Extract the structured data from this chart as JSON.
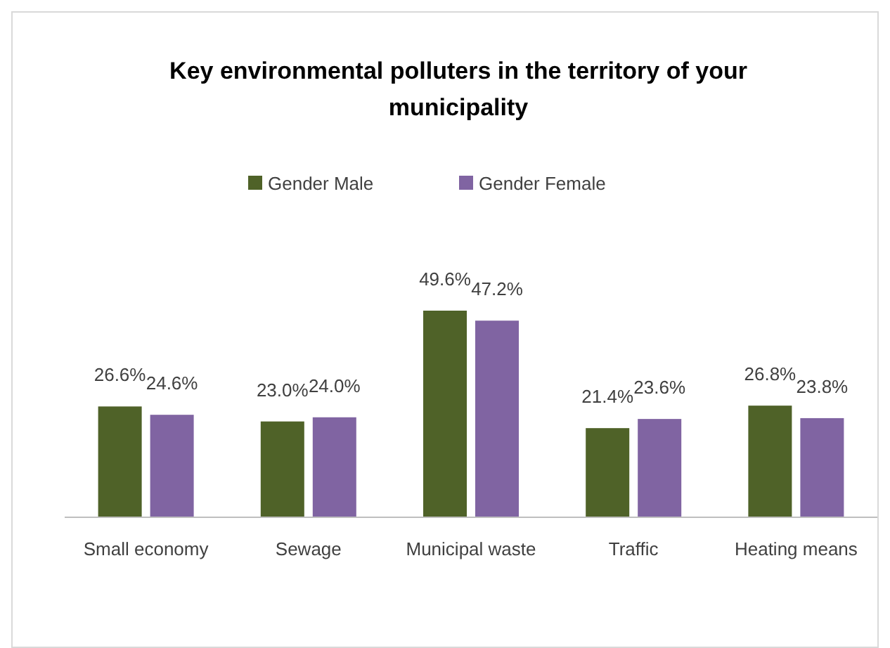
{
  "chart_data": {
    "type": "bar",
    "title": "Key environmental polluters in the territory of your municipality",
    "categories": [
      "Small economy",
      "Sewage",
      "Municipal waste",
      "Traffic",
      "Heating means"
    ],
    "legend": "top",
    "series": [
      {
        "name": "Gender Male",
        "color": "#4f6228",
        "values": [
          26.6,
          23.0,
          49.6,
          21.4,
          26.8
        ],
        "value_labels": [
          "26.6%",
          "23.0%",
          "49.6%",
          "21.4%",
          "26.8%"
        ]
      },
      {
        "name": "Gender Female",
        "color": "#8064a2",
        "values": [
          24.6,
          24.0,
          47.2,
          23.6,
          23.8
        ],
        "value_labels": [
          "24.6%",
          "24.0%",
          "47.2%",
          "23.6%",
          "23.8%"
        ]
      }
    ]
  }
}
